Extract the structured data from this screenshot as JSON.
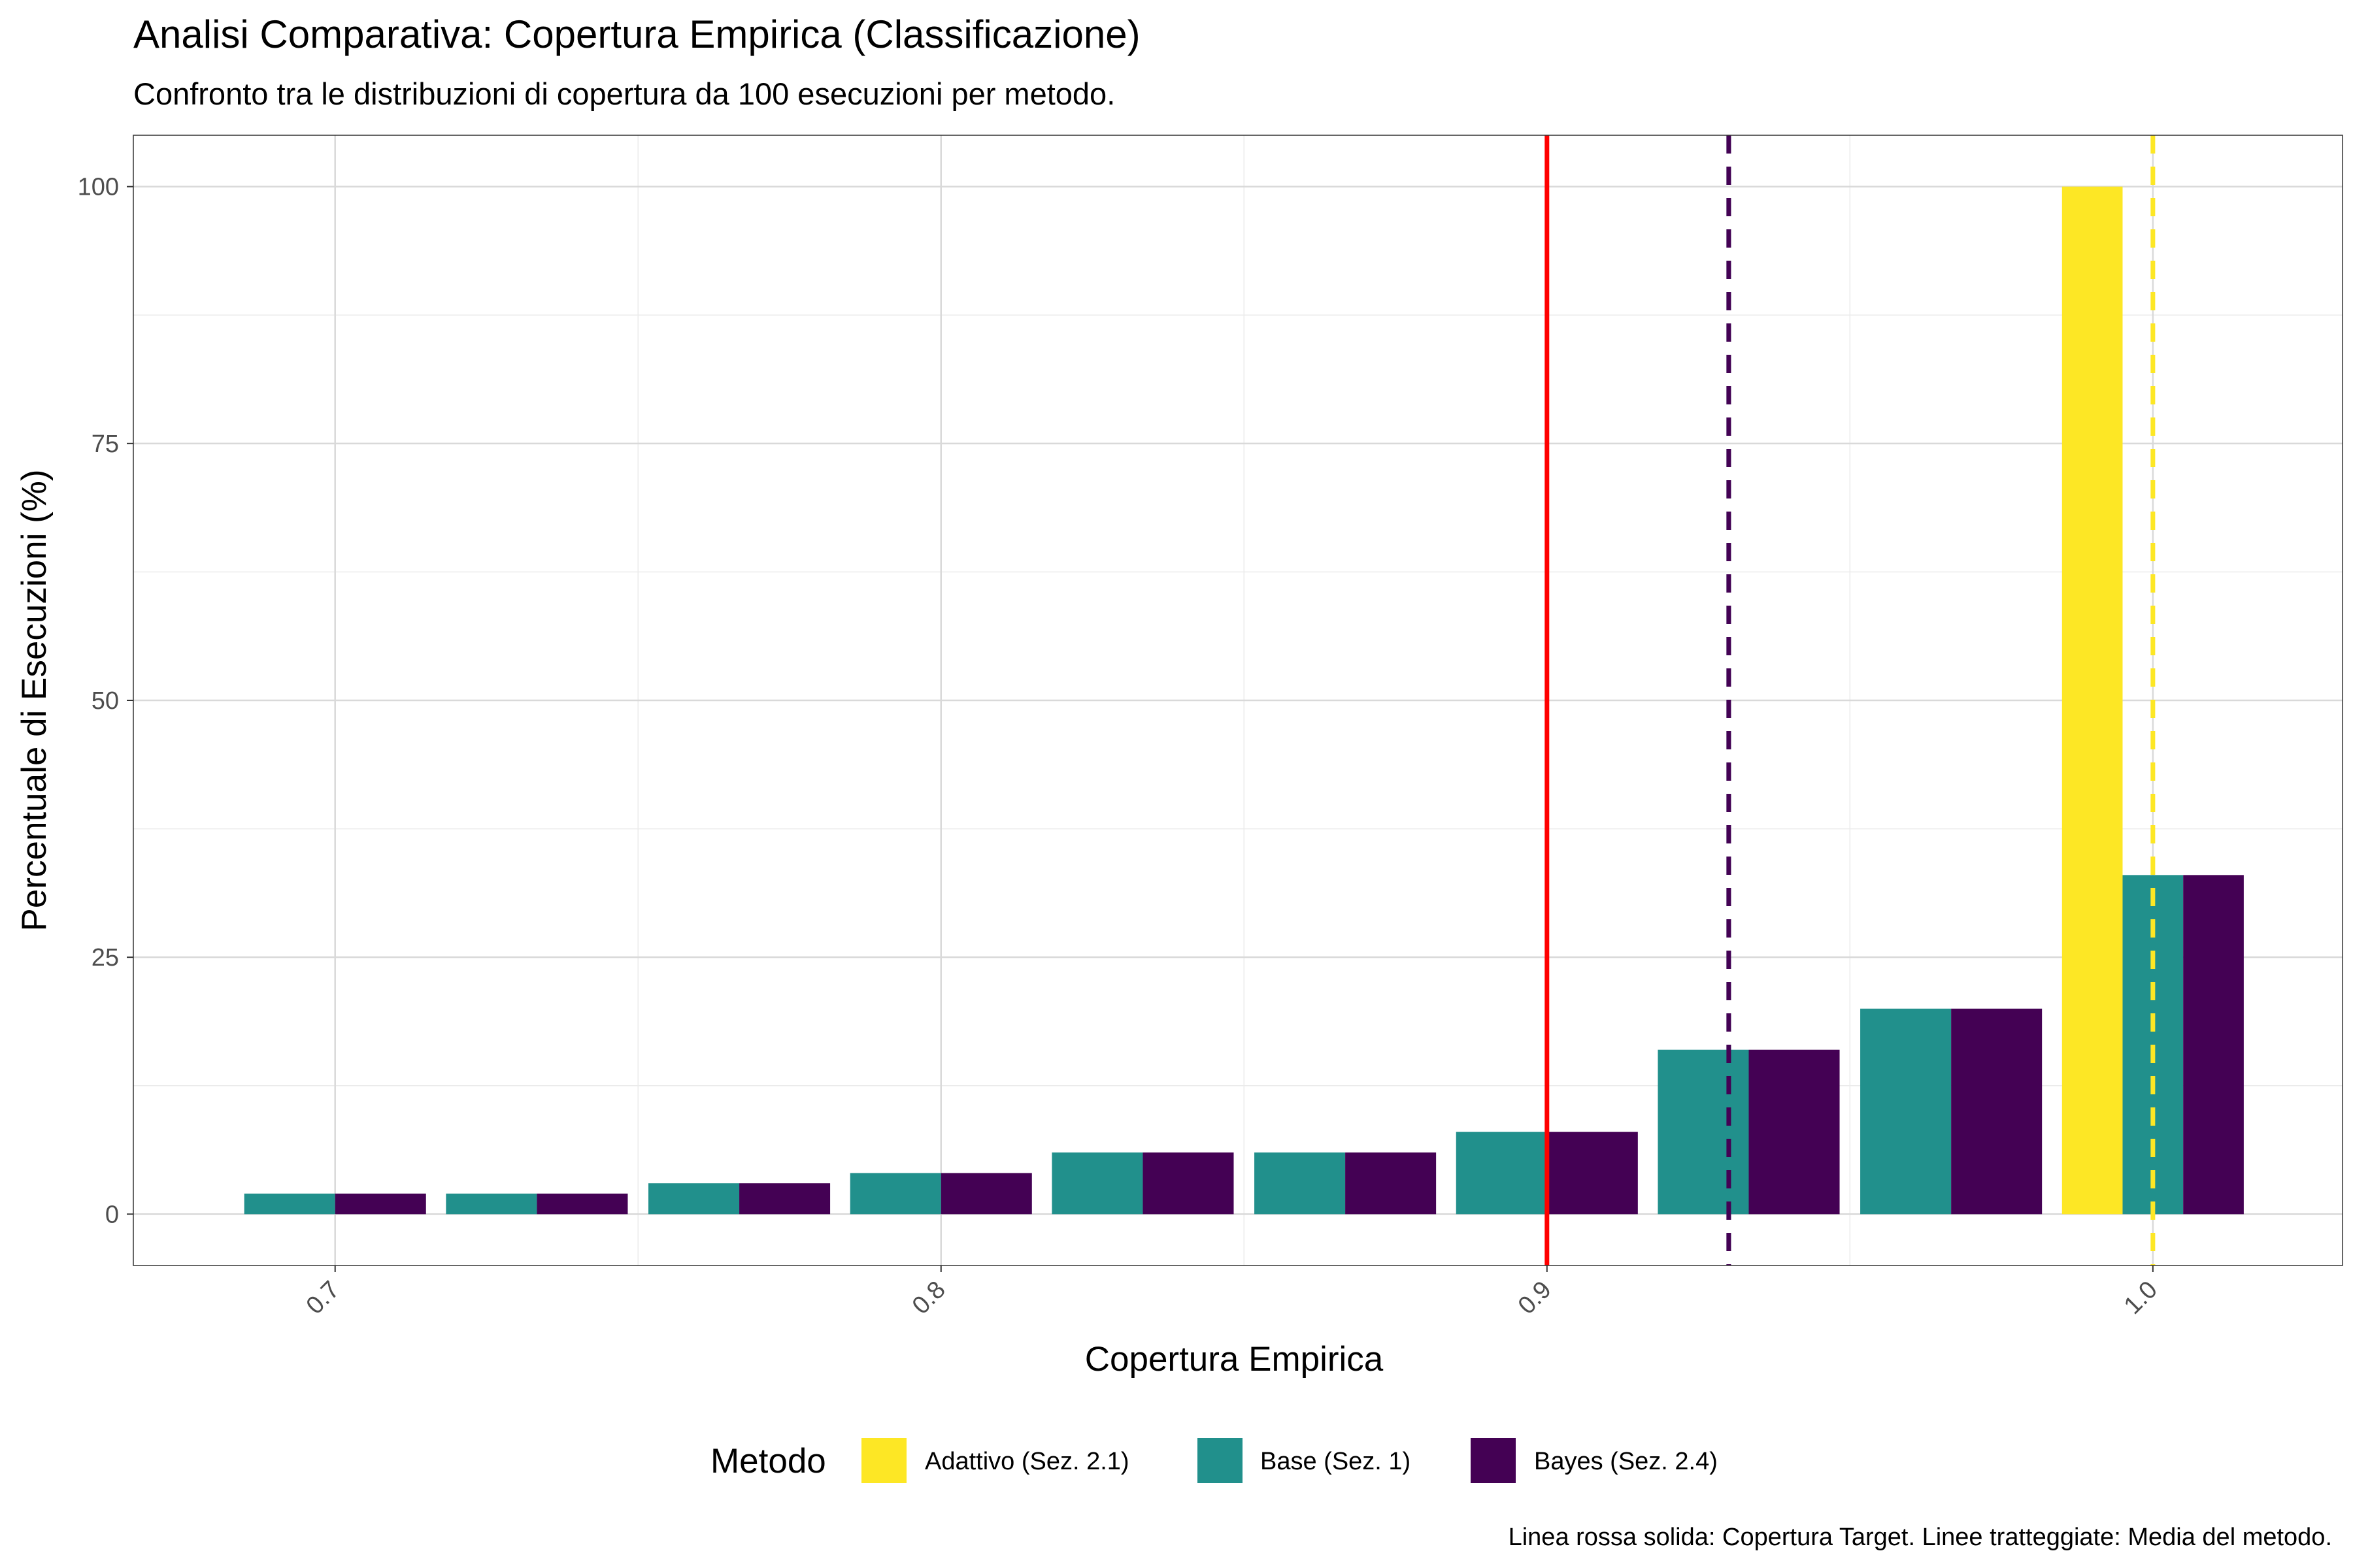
{
  "chart_data": {
    "type": "bar",
    "title": "Analisi Comparativa: Copertura Empirica (Classificazione)",
    "subtitle": "Confronto tra le distribuzioni di copertura da 100 esecuzioni per metodo.",
    "xlabel": "Copertura Empirica",
    "ylabel": "Percentuale di Esecuzioni (%)",
    "caption": "Linea rossa solida: Copertura Target. Linee tratteggiate: Media del metodo.",
    "xlim": [
      0.6667,
      1.0313
    ],
    "ylim": [
      -5,
      105
    ],
    "x_ticks": [
      0.7,
      0.8,
      0.9,
      1.0
    ],
    "x_tick_labels": [
      "0.7",
      "0.8",
      "0.9",
      "1.0"
    ],
    "y_ticks": [
      0,
      25,
      50,
      75,
      100
    ],
    "y_tick_labels": [
      "0",
      "25",
      "50",
      "75",
      "100"
    ],
    "grid": true,
    "bin_width": 0.03333,
    "bin_centers": [
      0.7,
      0.7333,
      0.7667,
      0.8,
      0.8333,
      0.8667,
      0.9,
      0.9333,
      0.9667,
      1.0
    ],
    "series": [
      {
        "name": "Adattivo (Sez. 2.1)",
        "color": "#FDE725",
        "bin_values": [
          0,
          0,
          0,
          0,
          0,
          0,
          0,
          0,
          0,
          100
        ],
        "mean": 1.0
      },
      {
        "name": "Base (Sez. 1)",
        "color": "#21908C",
        "bin_values": [
          2,
          2,
          3,
          4,
          6,
          6,
          8,
          16,
          20,
          33
        ],
        "mean": 0.93
      },
      {
        "name": "Bayes (Sez. 2.4)",
        "color": "#440154",
        "bin_values": [
          2,
          2,
          3,
          4,
          6,
          6,
          8,
          16,
          20,
          33
        ],
        "mean": 0.93
      }
    ],
    "target_line": {
      "x": 0.9,
      "color": "#FF0000"
    },
    "legend": {
      "title": "Metodo",
      "position": "bottom"
    }
  }
}
